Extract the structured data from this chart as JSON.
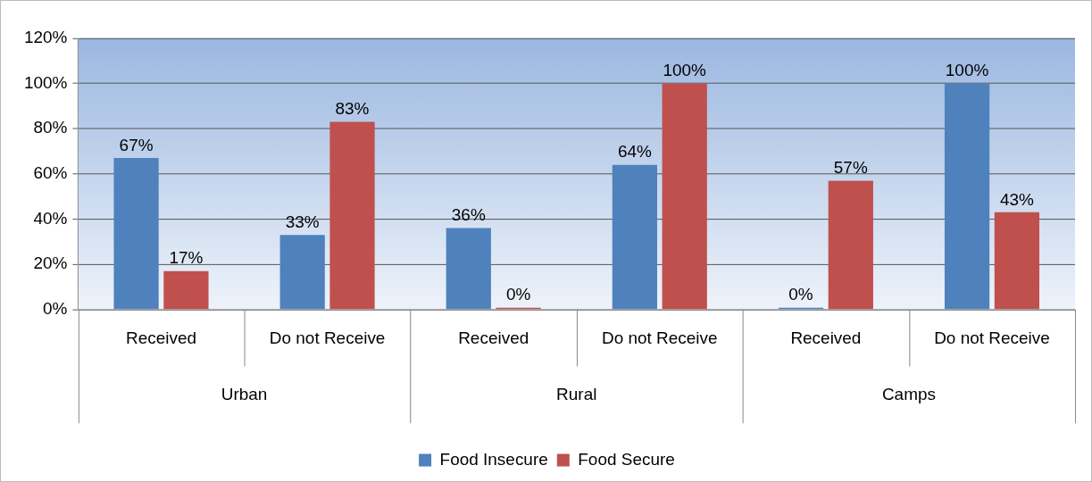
{
  "chart_data": {
    "type": "bar",
    "categories": [
      "Received",
      "Do not Receive",
      "Received",
      "Do not Receive",
      "Received",
      "Do not Receive"
    ],
    "series": [
      {
        "name": "Food Insecure",
        "color": "#4f81bd",
        "values": [
          67,
          33,
          36,
          64,
          0,
          100
        ],
        "value_labels": [
          "67%",
          "33%",
          "36%",
          "64%",
          "0%",
          "100%"
        ]
      },
      {
        "name": "Food Secure",
        "color": "#c0504d",
        "values": [
          17,
          83,
          0,
          100,
          57,
          43
        ],
        "value_labels": [
          "17%",
          "83%",
          "0%",
          "100%",
          "57%",
          "43%"
        ]
      }
    ],
    "annotations": [
      "Urban",
      "Rural",
      "Camps"
    ],
    "ylim": [
      0,
      120
    ],
    "yticks": [
      {
        "value": 0,
        "label": "0%"
      },
      {
        "value": 20,
        "label": "20%"
      },
      {
        "value": 40,
        "label": "40%"
      },
      {
        "value": 60,
        "label": "60%"
      },
      {
        "value": 80,
        "label": "80%"
      },
      {
        "value": 100,
        "label": "100%"
      },
      {
        "value": 120,
        "label": "120%"
      }
    ],
    "grid": "y",
    "legend": "bottom"
  }
}
